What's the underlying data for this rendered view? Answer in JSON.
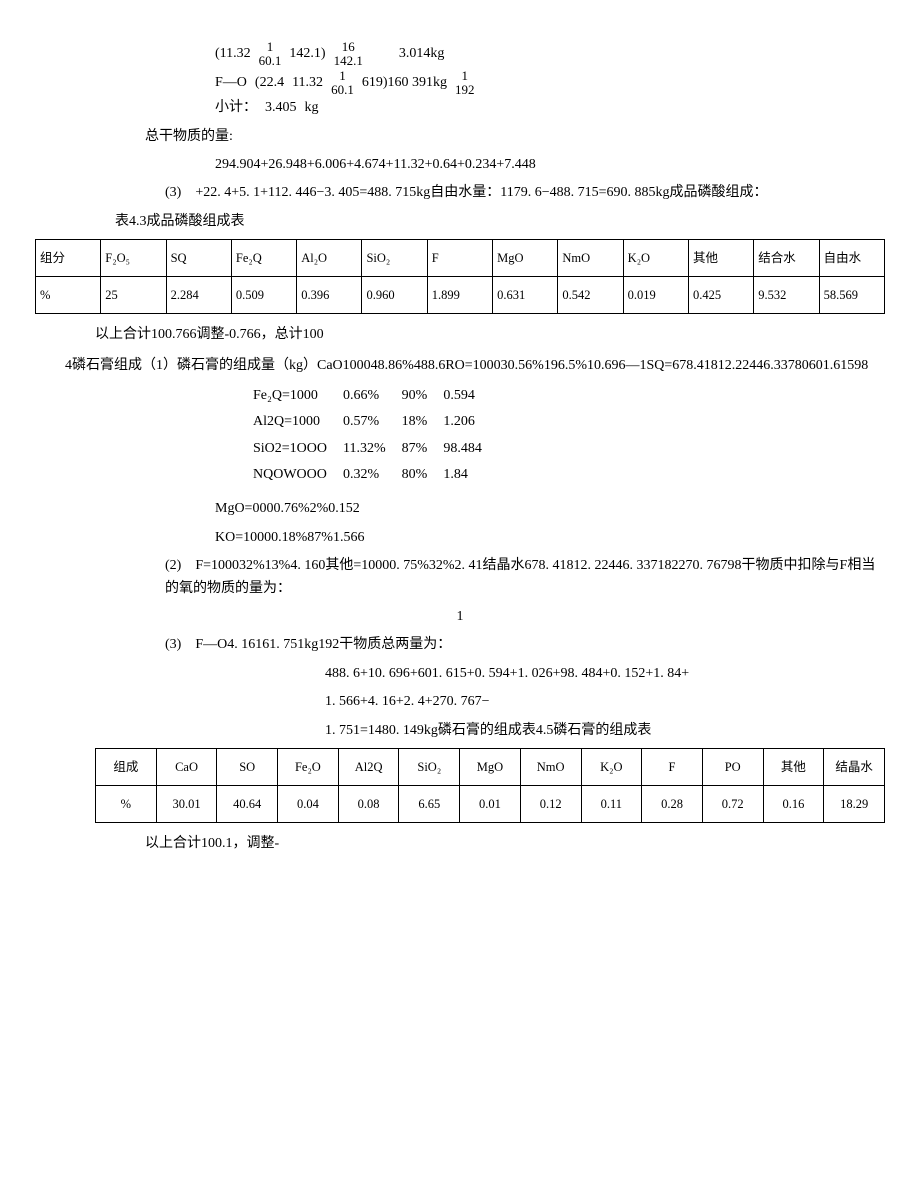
{
  "eq1": {
    "lead": "(11.32",
    "n1": "1",
    "d1": "60.1",
    "mid": "142.1)",
    "n2": "16",
    "d2": "142.1",
    "tail": "3.014kg"
  },
  "eq2": {
    "label": "F—O",
    "lead": "(22.4",
    "a": "11.32",
    "n1": "1",
    "d1": "60.1",
    "mid": "619)160 391kg",
    "n2": "1",
    "d2": "192"
  },
  "subtotal": {
    "label": "小计：",
    "val": "3.405",
    "unit": "kg"
  },
  "totalDryLabel": "总干物质的量:",
  "totalDrySum": "294.904+26.948+6.006+4.674+11.32+0.64+0.234+7.448",
  "p3": "(3) +22. 4+5. 1+112. 446−3. 405=488. 715kg自由水量：1179. 6−488. 715=690. 885kg成品磷酸组成：",
  "table1": {
    "title": "表4.3成品磷酸组成表",
    "headers": [
      "组分",
      "F₂O₅",
      "SQ",
      "Fe₂Q",
      "Al₂O",
      "SiO₂",
      "F",
      "MgO",
      "NmO",
      "K₂O",
      "其他",
      "结合水",
      "自由水"
    ],
    "rowLabel": "%",
    "row": [
      "25",
      "2.284",
      "0.509",
      "0.396",
      "0.960",
      "1.899",
      "0.631",
      "0.542",
      "0.019",
      "0.425",
      "9.532",
      "58.569"
    ],
    "footer": "以上合计100.766调整-0.766，总计100"
  },
  "section4": {
    "lead": "4磷石膏组成（1）磷石膏的组成量（kg）CaO100048.86%488.6RO=100030.56%196.5%10.696—1SQ=678.41812.22446.33780601.61598",
    "rows": [
      {
        "a": "Fe₂Q=1000",
        "b": "0.66%",
        "c": "90%",
        "d": "0.594"
      },
      {
        "a": "Al2Q=1000",
        "b": "0.57%",
        "c": "18%",
        "d": "1.206"
      },
      {
        "a": "SiO2=1OOO",
        "b": "11.32%",
        "c": "87%",
        "d": "98.484"
      },
      {
        "a": "NQOWOOO",
        "b": "0.32%",
        "c": "80%",
        "d": "1.84"
      }
    ],
    "mg": "MgO=0000.76%2%0.152",
    "ko": "KO=10000.18%87%1.566"
  },
  "p2line": "(2) F=100032%13%4. 160其他=10000. 75%32%2. 41结晶水678. 41812. 22446. 337182270. 76798干物质中扣除与F相当的氧的物质的量为：",
  "p3b": {
    "pre": "(3) F—O4. 16161. 751kg192干物质总两量为：",
    "one": "1"
  },
  "calcSum": [
    "488. 6+10. 696+601. 615+0. 594+1. 026+98. 484+0. 152+1. 84+",
    "1. 566+4. 16+2. 4+270. 767−",
    "1. 751=1480. 149kg磷石膏的组成表4.5磷石膏的组成表"
  ],
  "table2": {
    "headers": [
      "组成",
      "CaO",
      "SO",
      "Fe₂O",
      "Al2Q",
      "SiO₂",
      "MgO",
      "NmO",
      "K₂O",
      "F",
      "PO",
      "其他",
      "结晶水"
    ],
    "rowLabel": "%",
    "row": [
      "30.01",
      "40.64",
      "0.04",
      "0.08",
      "6.65",
      "0.01",
      "0.12",
      "0.11",
      "0.28",
      "0.72",
      "0.16",
      "18.29"
    ],
    "footer": "以上合计100.1，调整-"
  },
  "colors": {
    "text": "#000000",
    "bg": "#ffffff",
    "border": "#000000"
  }
}
